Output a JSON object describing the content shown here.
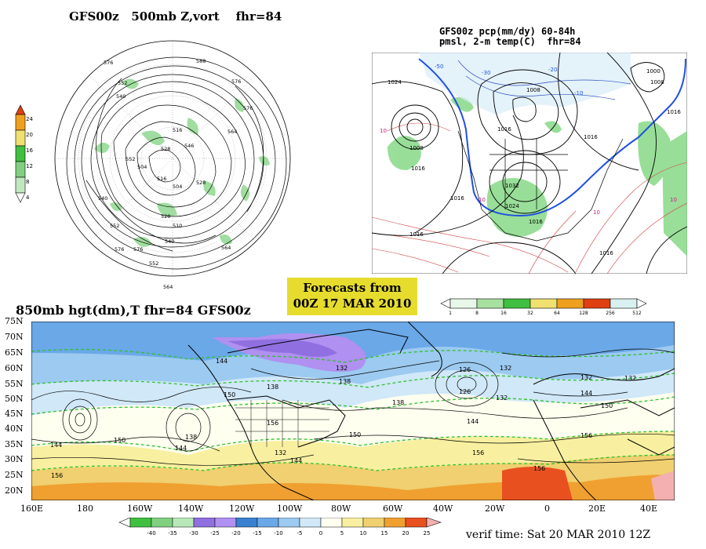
{
  "panels": {
    "top_left": {
      "title_model": "GFS00z",
      "title_field": "500mb Z,vort",
      "title_fhr": "fhr=84",
      "contour_labels": [
        "576",
        "588",
        "576",
        "552",
        "540",
        "516",
        "528",
        "546",
        "564",
        "576",
        "552",
        "576",
        "504",
        "528",
        "516",
        "504",
        "510",
        "540",
        "552",
        "576",
        "564",
        "528",
        "540",
        "552",
        "564"
      ],
      "colorbar": {
        "labels": [
          "24",
          "20",
          "16",
          "12",
          "8",
          "4"
        ],
        "colors": [
          "#e04010",
          "#f0a020",
          "#f0e070",
          "#40c040",
          "#80d080",
          "#c0e8c0"
        ]
      }
    },
    "top_right": {
      "title_line1": "GFS00z pcp(mm/dy) 60-84h",
      "title_line2": "pmsl, 2-m temp(C)  fhr=84",
      "contour_labels": [
        "1024",
        "1008",
        "1016",
        "1008",
        "1016",
        "1016",
        "1032",
        "1024",
        "1016",
        "1016",
        "1016",
        "1016",
        "-50",
        "-30",
        "-20",
        "-10",
        "10",
        "10",
        "10",
        "10",
        "1000",
        "1008",
        "1016"
      ],
      "colorbar": {
        "labels": [
          "1",
          "8",
          "16",
          "32",
          "64",
          "128",
          "256",
          "512"
        ],
        "colors": [
          "#e8f8e8",
          "#a8e0a0",
          "#40c040",
          "#f0e070",
          "#f0a020",
          "#e04010",
          "#d8f0f0"
        ]
      }
    },
    "bottom": {
      "title": "850mb hgt(dm),T  fhr=84 GFS00z",
      "lat_labels": [
        "75N",
        "70N",
        "65N",
        "60N",
        "55N",
        "50N",
        "45N",
        "40N",
        "35N",
        "30N",
        "25N",
        "20N"
      ],
      "lon_labels": [
        "160E",
        "180",
        "160W",
        "140W",
        "120W",
        "100W",
        "80W",
        "60W",
        "40W",
        "20W",
        "0",
        "20E",
        "40E"
      ],
      "contour_labels": [
        "144",
        "138",
        "132",
        "138",
        "138",
        "150",
        "132",
        "132",
        "132",
        "126",
        "126",
        "132",
        "144",
        "150",
        "156",
        "144",
        "138",
        "150",
        "144",
        "156",
        "156",
        "144",
        "156",
        "150",
        "132",
        "144",
        "156"
      ],
      "colorbar": {
        "labels": [
          "-40",
          "-35",
          "-30",
          "-25",
          "-20",
          "-15",
          "-10",
          "-5",
          "0",
          "5",
          "10",
          "15",
          "20",
          "25"
        ],
        "colors": [
          "#40c040",
          "#80d080",
          "#b8e8b8",
          "#9070e0",
          "#b090f0",
          "#3a80d0",
          "#6aa8e8",
          "#9ccaf0",
          "#d0e8f8",
          "#fffff0",
          "#f8f0a0",
          "#f0d070",
          "#f0a030",
          "#e85020",
          "#f4b0b0"
        ]
      }
    }
  },
  "banner": {
    "line1": "Forecasts from",
    "line2": "00Z 17 MAR 2010"
  },
  "verif_time": "verif time: Sat 20 MAR 2010 12Z"
}
